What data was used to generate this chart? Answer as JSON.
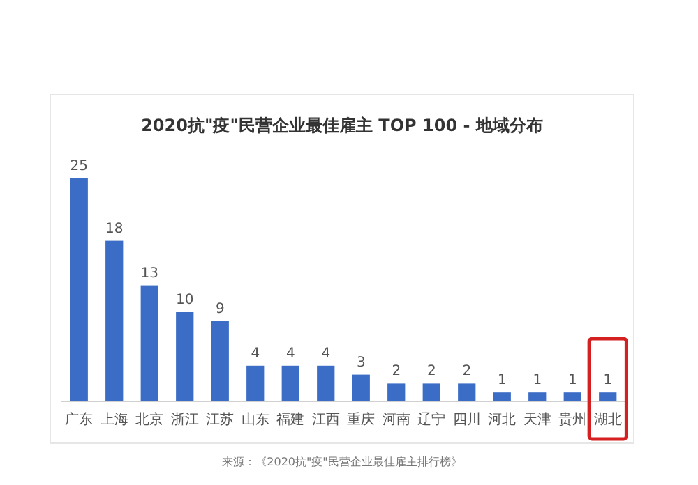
{
  "chart_data": {
    "type": "bar",
    "title": "2020抗\"疫\"民营企业最佳雇主 TOP 100 - 地域分布",
    "categories": [
      "广东",
      "上海",
      "北京",
      "浙江",
      "江苏",
      "山东",
      "福建",
      "江西",
      "重庆",
      "河南",
      "辽宁",
      "四川",
      "河北",
      "天津",
      "贵州",
      "湖北"
    ],
    "values": [
      25,
      18,
      13,
      10,
      9,
      4,
      4,
      4,
      3,
      2,
      2,
      2,
      1,
      1,
      1,
      1
    ],
    "color": "#3b6cc6",
    "data_labels": true,
    "annotations": [
      "来源：《2020抗\"疫\"民营企业最佳雇主排行榜》"
    ]
  }
}
